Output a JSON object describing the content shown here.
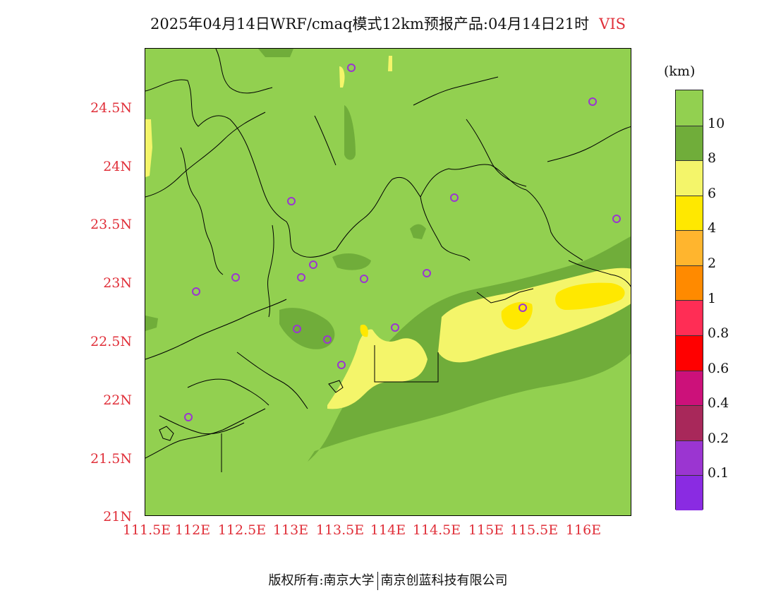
{
  "title": {
    "main": "2025年04月14日WRF/cmaq模式12km预报产品:04月14日21时",
    "variable": "VIS"
  },
  "axes": {
    "lat_labels": [
      "24.5N",
      "24N",
      "23.5N",
      "23N",
      "22.5N",
      "22N",
      "21.5N",
      "21N"
    ],
    "lon_labels": [
      "111.5E",
      "112E",
      "112.5E",
      "113E",
      "113.5E",
      "114E",
      "114.5E",
      "115E",
      "115.5E",
      "116E"
    ]
  },
  "colorbar": {
    "units": "(km)",
    "labels": [
      "10",
      "8",
      "6",
      "4",
      "2",
      "1",
      "0.8",
      "0.6",
      "0.4",
      "0.2",
      "0.1"
    ],
    "colors": [
      "#92d050",
      "#70ad3a",
      "#f4f56a",
      "#ffe800",
      "#ffb52e",
      "#ff8a00",
      "#ff2d55",
      "#ff0000",
      "#cc117a",
      "#a8285a",
      "#9b35d1",
      "#8a2be2"
    ]
  },
  "footer": {
    "left": "版权所有:南京大学",
    "right": "南京创蓝科技有限公司"
  }
}
